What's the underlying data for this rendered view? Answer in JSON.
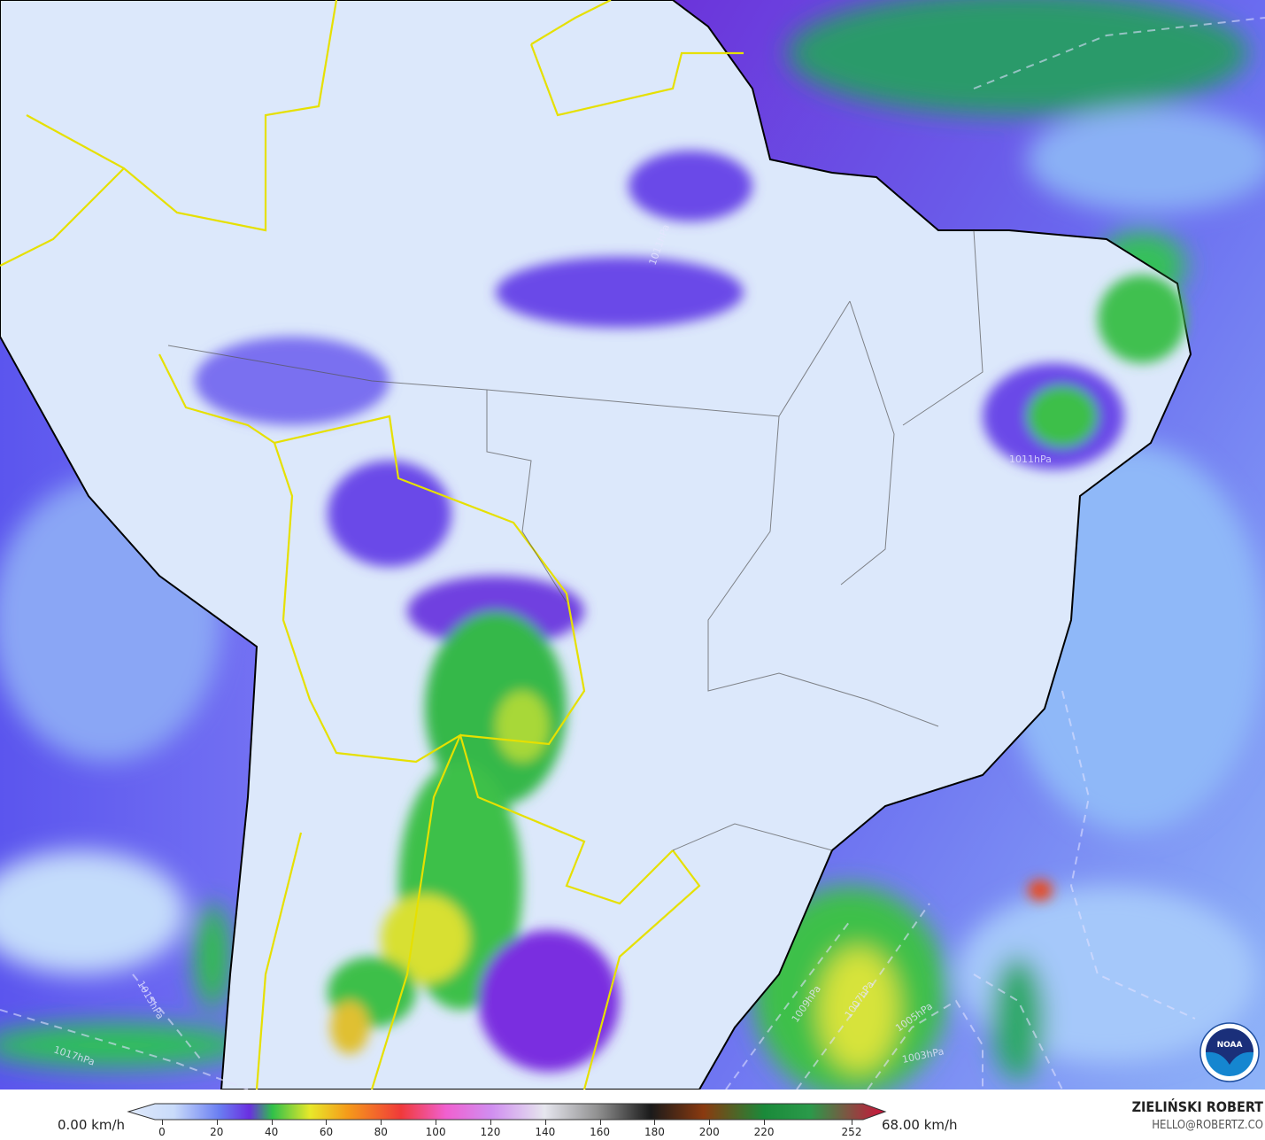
{
  "map": {
    "variable_unit": "km/h",
    "isobar_labels": [
      "1017hPa",
      "1015hPa",
      "1011hPa",
      "1011hPa",
      "1009hPa",
      "1007hPa",
      "1005hPa",
      "1003hPa"
    ],
    "logo": "NOAA",
    "colors": {
      "land_low": "#dce8fb",
      "ocean_mid": "#6a5cf0",
      "purple": "#7a2fe0",
      "green": "#2fbf4a",
      "yellow": "#e8e62a",
      "border_national": "#e6e000",
      "coast": "#000000"
    }
  },
  "legend": {
    "min_label": "0.00 km/h",
    "max_label": "68.00 km/h",
    "ticks": [
      "0",
      "20",
      "40",
      "60",
      "80",
      "100",
      "120",
      "140",
      "160",
      "180",
      "200",
      "220",
      "252"
    ]
  },
  "branding": {
    "name": "ZIELIŃSKI ROBERT",
    "email": "HELLO@ROBERTZ.CO"
  }
}
